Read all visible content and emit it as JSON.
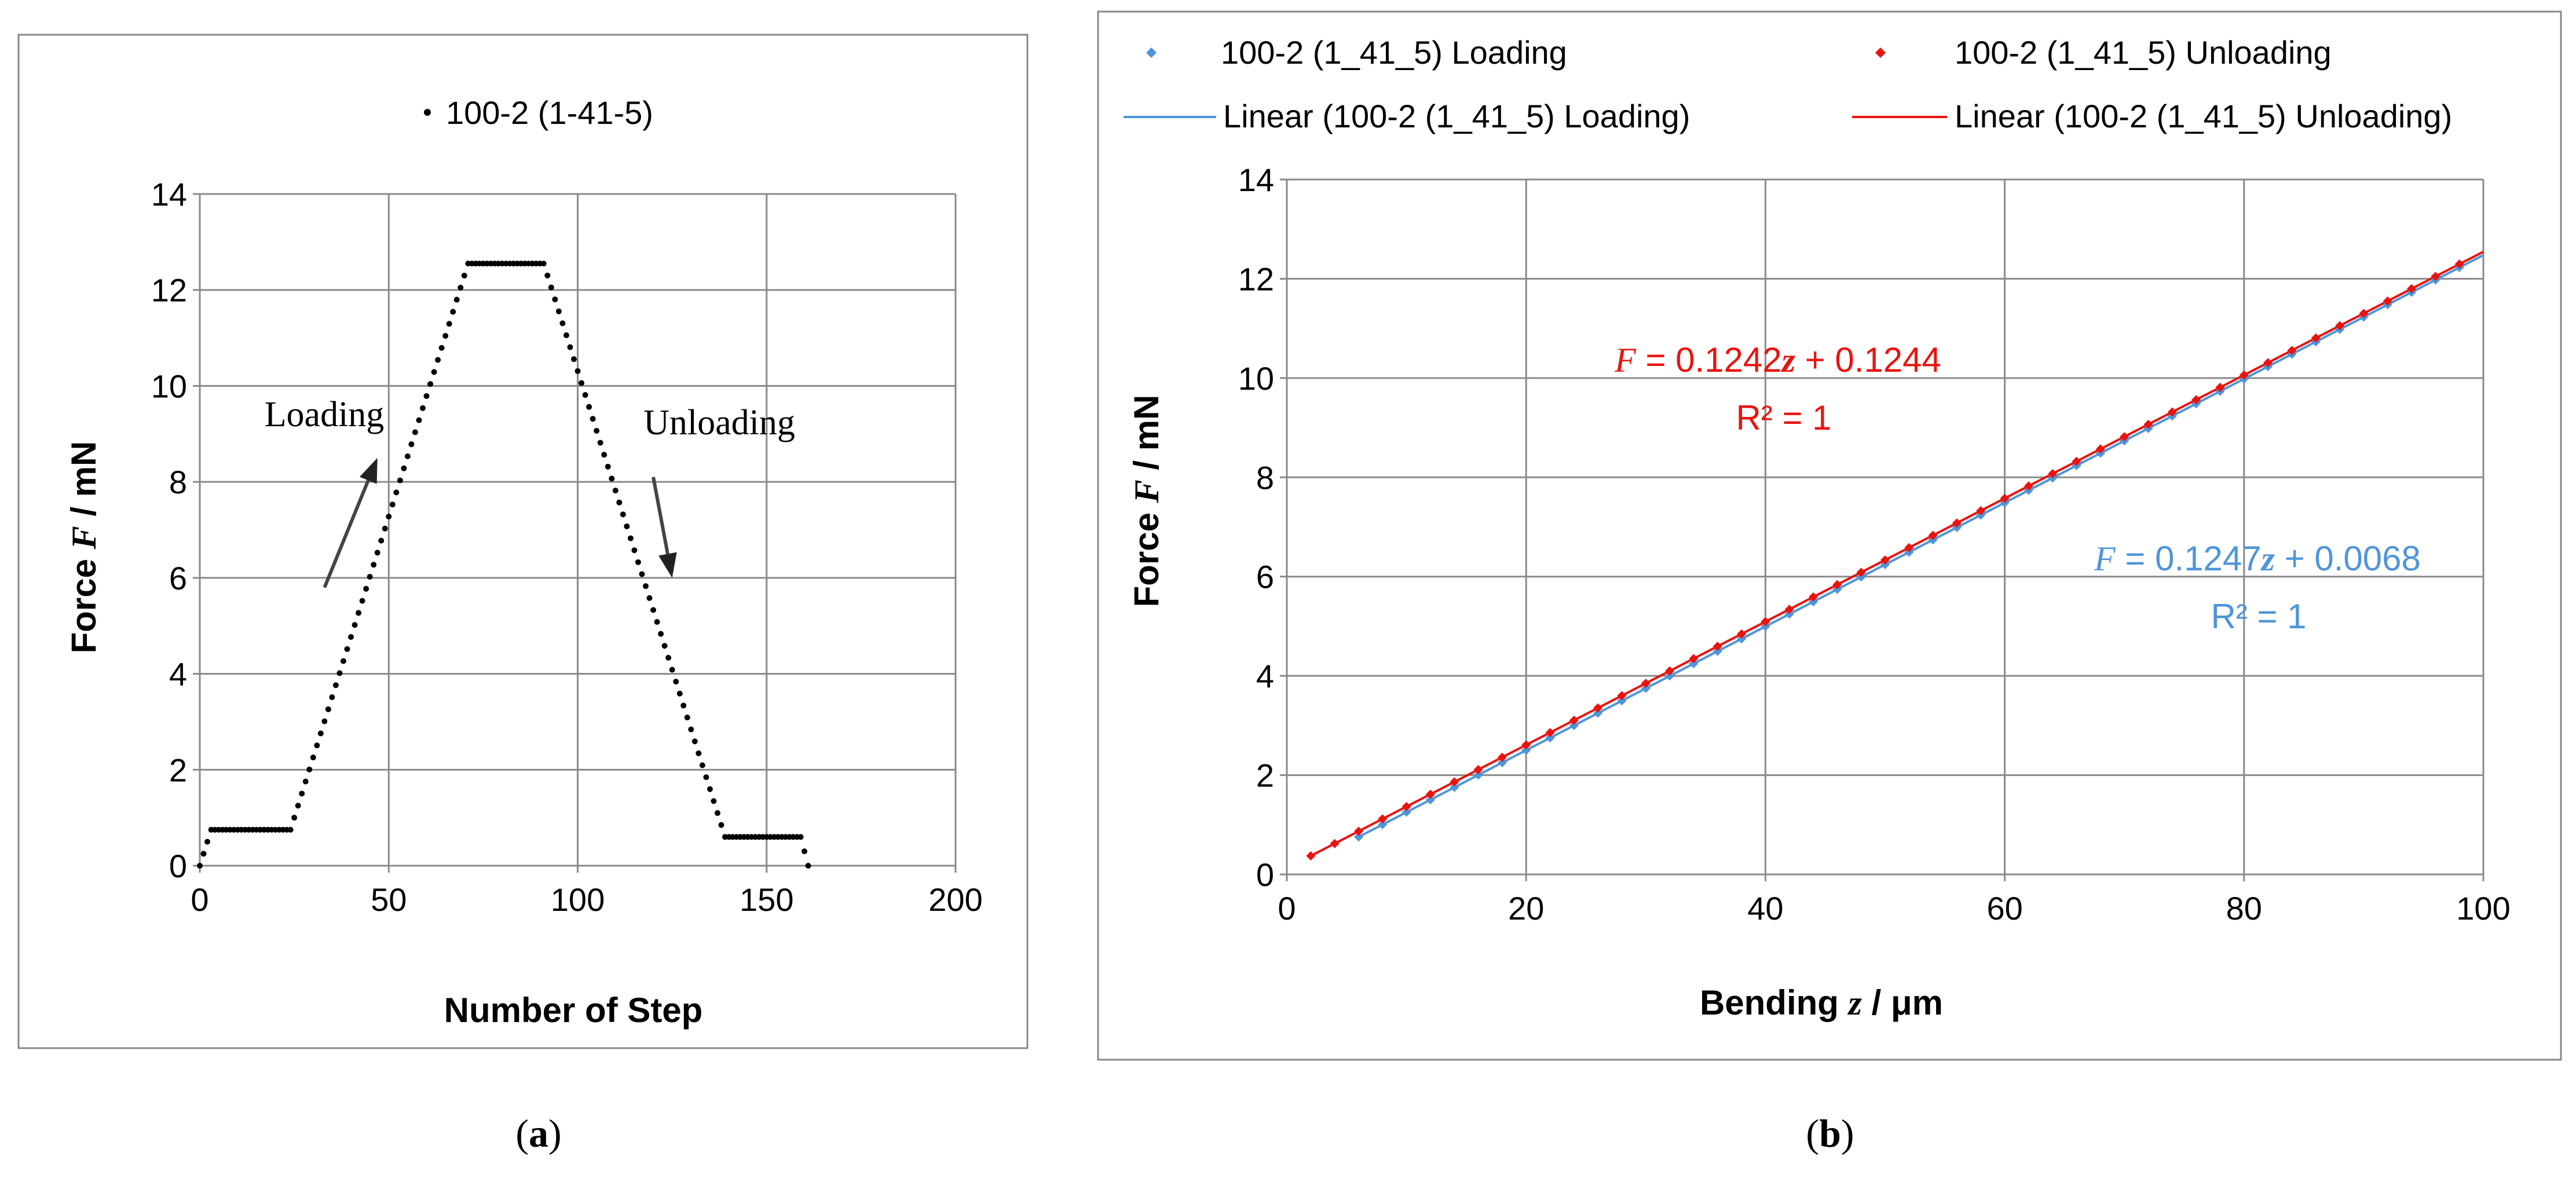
{
  "chart_data": [
    {
      "id": "a",
      "type": "scatter",
      "caption_letter": "a",
      "series": [
        {
          "name": "100-2 (1-41-5)",
          "color": "#000000",
          "segments": [
            {
              "from_step": 0,
              "to_step": 3,
              "from_force": 0.0,
              "to_force": 0.75
            },
            {
              "from_step": 3,
              "to_step": 24,
              "from_force": 0.75,
              "to_force": 0.75
            },
            {
              "from_step": 24,
              "to_step": 71,
              "from_force": 0.75,
              "to_force": 12.55
            },
            {
              "from_step": 71,
              "to_step": 91,
              "from_force": 12.55,
              "to_force": 12.55
            },
            {
              "from_step": 91,
              "to_step": 139,
              "from_force": 12.55,
              "to_force": 0.6
            },
            {
              "from_step": 139,
              "to_step": 159,
              "from_force": 0.6,
              "to_force": 0.6
            },
            {
              "from_step": 159,
              "to_step": 161,
              "from_force": 0.6,
              "to_force": 0.0
            }
          ]
        }
      ],
      "xlabel": "Number of Step",
      "ylabel_prefix": "Force ",
      "ylabel_var": "F",
      "ylabel_suffix": " / mN",
      "xlim": [
        0,
        200
      ],
      "ylim": [
        0,
        14
      ],
      "xticks": [
        "0",
        "50",
        "100",
        "150",
        "200"
      ],
      "yticks": [
        "0",
        "2",
        "4",
        "6",
        "8",
        "10",
        "12",
        "14"
      ],
      "grid": true,
      "legend_position": "top-center",
      "annotations": [
        {
          "text": "Loading",
          "at_step": 47,
          "at_force": 9.3,
          "arrow_from": [
            33,
            5.8
          ],
          "arrow_to": [
            47,
            8.5
          ]
        },
        {
          "text": "Unloading",
          "at_step": 138,
          "at_force": 9.0,
          "arrow_from": [
            120,
            8.1
          ],
          "arrow_to": [
            125,
            6.0
          ]
        }
      ]
    },
    {
      "id": "b",
      "type": "scatter",
      "caption_letter": "b",
      "series": [
        {
          "name": "100-2 (1_41_5) Loading",
          "color": "#4F95D9",
          "marker": "diamond",
          "x_start": 6,
          "x_end": 98,
          "x_step": 2,
          "slope": 0.1247,
          "intercept": 0.0068
        },
        {
          "name": "100-2 (1_41_5) Unloading",
          "color": "#E8140F",
          "marker": "diamond",
          "x_start": 2,
          "x_end": 98,
          "x_step": 2,
          "slope": 0.1242,
          "intercept": 0.1244
        }
      ],
      "trendlines": [
        {
          "name": "Linear (100-2 (1_41_5) Loading)",
          "color": "#4F95D9",
          "slope": 0.1247,
          "intercept": 0.0068,
          "x_range": [
            6,
            100
          ]
        },
        {
          "name": "Linear (100-2 (1_41_5) Unloading)",
          "color": "#E8140F",
          "slope": 0.1242,
          "intercept": 0.1244,
          "x_range": [
            2,
            100
          ]
        }
      ],
      "equations": [
        {
          "var": "F",
          "rhs_a": " = 0.1242",
          "rhs_var": "z",
          "rhs_b": " + 0.1244",
          "r2": "R² = 1",
          "color": "#E8140F"
        },
        {
          "var": "F",
          "rhs_a": " = 0.1247",
          "rhs_var": "z",
          "rhs_b": " + 0.0068",
          "r2": "R² = 1",
          "color": "#4F95D9"
        }
      ],
      "xlabel_prefix": "Bending ",
      "xlabel_var": "z",
      "xlabel_suffix": " / μm",
      "ylabel_prefix": "Force ",
      "ylabel_var": "F",
      "ylabel_suffix": " / mN",
      "xlim": [
        0,
        100
      ],
      "ylim": [
        0,
        14
      ],
      "xticks": [
        "0",
        "20",
        "40",
        "60",
        "80",
        "100"
      ],
      "yticks": [
        "0",
        "2",
        "4",
        "6",
        "8",
        "10",
        "12",
        "14"
      ],
      "grid": true,
      "legend_position": "top"
    }
  ],
  "captions": {
    "a": "a",
    "b": "b"
  }
}
